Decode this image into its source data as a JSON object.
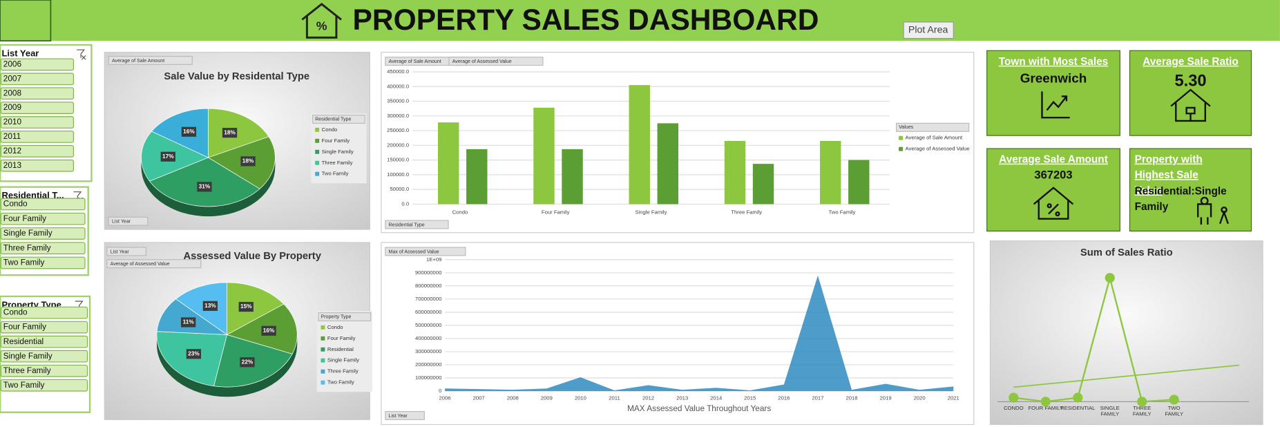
{
  "header": {
    "title": "PROPERTY SALES DASHBOARD",
    "tooltip": "Plot Area"
  },
  "slicers": [
    {
      "title": "List Year",
      "items": [
        "2006",
        "2007",
        "2008",
        "2009",
        "2010",
        "2011",
        "2012",
        "2013"
      ]
    },
    {
      "title": "Residential T...",
      "items": [
        "Condo",
        "Four Family",
        "Single Family",
        "Three Family",
        "Two Family"
      ]
    },
    {
      "title": "Property Type",
      "items": [
        "Condo",
        "Four Family",
        "Residential",
        "Single Family",
        "Three Family",
        "Two Family"
      ]
    }
  ],
  "cards": [
    {
      "title": "Town with Most Sales",
      "value": "Greenwich"
    },
    {
      "title": "Average Sale Ratio",
      "value": "5.30"
    },
    {
      "title": "Average Sale Amount",
      "value": "367203"
    },
    {
      "title": "Property with Highest Sale Value",
      "value": "Residential:Single Family"
    }
  ],
  "chart_data": [
    {
      "type": "pie",
      "title": "Sale Value by Residental Type",
      "buttons": [
        "Average of Sale Amount",
        "List Year"
      ],
      "legend_title": "Residential Type",
      "categories": [
        "Condo",
        "Four Family",
        "Single Family",
        "Three Family",
        "Two Family"
      ],
      "values": [
        18,
        18,
        31,
        17,
        16
      ],
      "value_labels": [
        "18%",
        "18%",
        "31%",
        "17%",
        "16%"
      ],
      "colors": [
        "#8dc63f",
        "#5a9e34",
        "#2e9e62",
        "#3ec5a0",
        "#3aaed8"
      ]
    },
    {
      "type": "bar",
      "buttons": [
        "Average of Sale Amount",
        "Average of Assessed Value",
        "Residential Type"
      ],
      "legend_title": "Values",
      "categories": [
        "Condo",
        "Four Family",
        "Single Family",
        "Three Family",
        "Two Family"
      ],
      "series": [
        {
          "name": "Average of Sale Amount",
          "color": "#8dc63f",
          "values": [
            278000,
            328000,
            405000,
            215000,
            215000
          ]
        },
        {
          "name": "Average of Assessed Value",
          "color": "#5a9e34",
          "values": [
            187000,
            187000,
            275000,
            137000,
            150000
          ]
        }
      ],
      "ylim": [
        0,
        450000
      ],
      "yticks": [
        {
          "value": 0,
          "label": "0.0"
        },
        {
          "value": 50000,
          "label": "50000.0"
        },
        {
          "value": 100000,
          "label": "100000.0"
        },
        {
          "value": 150000,
          "label": "150000.0"
        },
        {
          "value": 200000,
          "label": "200000.0"
        },
        {
          "value": 250000,
          "label": "250000.0"
        },
        {
          "value": 300000,
          "label": "300000.0"
        },
        {
          "value": 350000,
          "label": "350000.0"
        },
        {
          "value": 400000,
          "label": "400000.0"
        },
        {
          "value": 450000,
          "label": "450000.0"
        }
      ],
      "grid": true
    },
    {
      "type": "pie",
      "title": "Assessed Value By Property",
      "buttons": [
        "List Year",
        "Average of Assessed Value"
      ],
      "legend_title": "Property Type",
      "categories": [
        "Condo",
        "Four Family",
        "Residential",
        "Single Family",
        "Three Family",
        "Two Family"
      ],
      "values": [
        15,
        16,
        22,
        23,
        11,
        13
      ],
      "value_labels": [
        "15%",
        "16%",
        "22%",
        "23%",
        "11%",
        "13%"
      ],
      "colors": [
        "#8dc63f",
        "#5a9e34",
        "#2e9e62",
        "#3ec5a0",
        "#45a8d0",
        "#55bdf0"
      ]
    },
    {
      "type": "area",
      "x_label": "MAX Assessed Value Throughout Years",
      "buttons": [
        "Max of Assessed Value",
        "List Year"
      ],
      "x": [
        2006,
        2007,
        2008,
        2009,
        2010,
        2011,
        2012,
        2013,
        2014,
        2015,
        2016,
        2017,
        2018,
        2019,
        2020,
        2021
      ],
      "values": [
        20000000,
        15000000,
        10000000,
        20000000,
        105000000,
        5000000,
        45000000,
        10000000,
        25000000,
        5000000,
        50000000,
        880000000,
        10000000,
        55000000,
        10000000,
        35000000
      ],
      "color": "#2e8bc0",
      "xlim": [
        2006,
        2021
      ],
      "ylim": [
        0,
        1000000000
      ],
      "yticks": [
        0,
        100000000,
        200000000,
        300000000,
        400000000,
        500000000,
        600000000,
        700000000,
        800000000,
        900000000,
        {
          "value": 1000000000,
          "label": "1E+09"
        }
      ],
      "grid": true
    },
    {
      "type": "line",
      "title": "Sum of Sales Ratio",
      "categories": [
        "CONDO",
        "FOUR FAMILY",
        "RESIDENTIAL",
        "SINGLE FAMILY",
        "THREE FAMILY",
        "TWO FAMILY"
      ],
      "values": [
        2,
        0,
        2,
        61,
        0,
        1
      ],
      "color": "#8dc63f",
      "ylim": [
        0,
        70
      ],
      "trendline": true
    }
  ]
}
